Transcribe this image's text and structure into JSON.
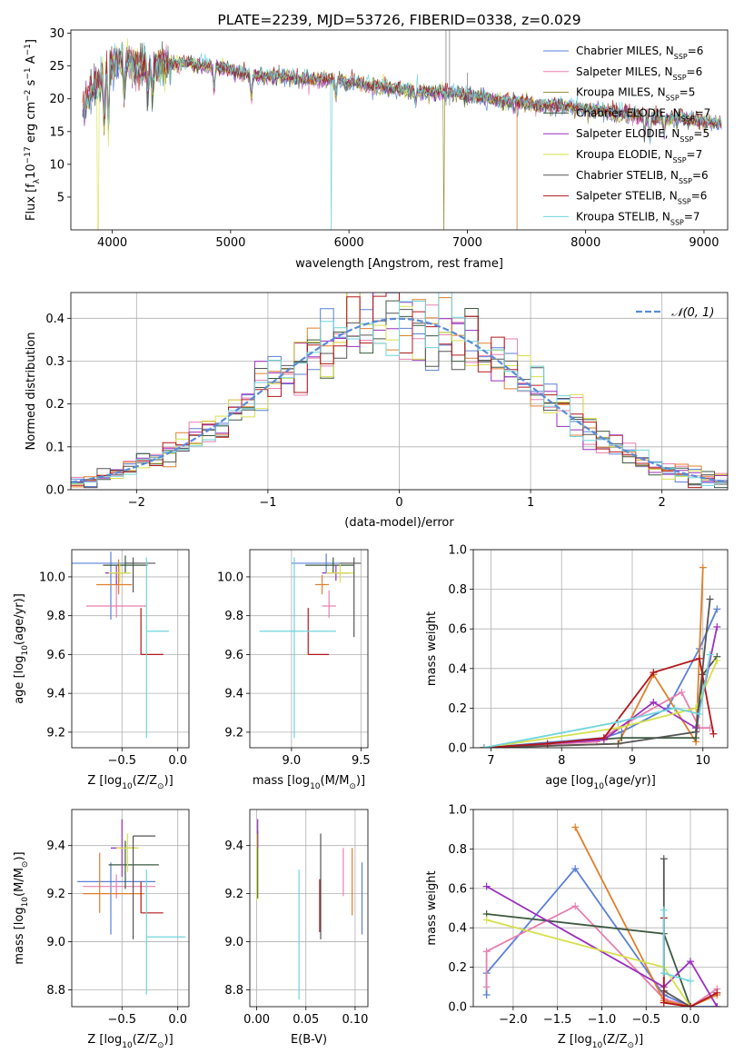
{
  "chart_data": [
    {
      "type": "line",
      "id": "spectrum",
      "title": "PLATE=2239, MJD=53726, FIBERID=0338, z=0.029",
      "xlabel": "wavelength [Angstrom, rest frame]",
      "ylabel_parts": [
        "Flux [f",
        "λ",
        "10",
        "−17",
        " erg cm",
        "−2",
        " s",
        "−1",
        " A",
        "−1",
        "]"
      ],
      "xlim": [
        3650,
        9200
      ],
      "ylim": [
        0,
        30.5
      ],
      "xticks": [
        4000,
        5000,
        6000,
        7000,
        8000,
        9000
      ],
      "yticks": [
        5,
        10,
        15,
        20,
        25,
        30
      ],
      "grid": false,
      "legend_position": "upper-right",
      "x_range": [
        3750,
        9150
      ],
      "series": [
        {
          "label_main": "Chabrier MILES, N",
          "label_sub": "SSP",
          "label_tail": "=6",
          "color": "#5a7fd8",
          "mask_x": null
        },
        {
          "label_main": "Salpeter MILES, N",
          "label_sub": "SSP",
          "label_tail": "=6",
          "color": "#e87fb0",
          "mask_x": null
        },
        {
          "label_main": "Kroupa MILES, N",
          "label_sub": "SSP",
          "label_tail": "=5",
          "color": "#8c8a2a",
          "mask_x": 6800
        },
        {
          "label_main": "Chabrier ELODIE, N",
          "label_sub": "SSP",
          "label_tail": "=7",
          "color": "#3c5a40",
          "mask_x": null
        },
        {
          "label_main": "Salpeter ELODIE, N",
          "label_sub": "SSP",
          "label_tail": "=5",
          "color": "#9a2fbf",
          "mask_x": null
        },
        {
          "label_main": "Kroupa ELODIE, N",
          "label_sub": "SSP",
          "label_tail": "=7",
          "color": "#d6e04a",
          "mask_x": null
        },
        {
          "label_main": "Chabrier STELIB, N",
          "label_sub": "SSP",
          "label_tail": "=6",
          "color": "#555555",
          "mask_x": null
        },
        {
          "label_main": "Salpeter STELIB, N",
          "label_sub": "SSP",
          "label_tail": "=6",
          "color": "#b3171b",
          "mask_x": null
        },
        {
          "label_main": "Kroupa STELIB, N",
          "label_sub": "SSP",
          "label_tail": "=7",
          "color": "#6fd4dc",
          "mask_x": 5850
        }
      ],
      "continuum": [
        [
          3750,
          18
        ],
        [
          3850,
          22
        ],
        [
          3950,
          24
        ],
        [
          4050,
          26
        ],
        [
          4200,
          25
        ],
        [
          4400,
          25
        ],
        [
          4600,
          25.5
        ],
        [
          4800,
          25
        ],
        [
          5000,
          24.5
        ],
        [
          5200,
          23.5
        ],
        [
          5400,
          23.5
        ],
        [
          5600,
          23
        ],
        [
          5800,
          23
        ],
        [
          6000,
          22.5
        ],
        [
          6200,
          22
        ],
        [
          6400,
          21.5
        ],
        [
          6600,
          21
        ],
        [
          6800,
          21
        ],
        [
          7000,
          20.5
        ],
        [
          7200,
          20
        ],
        [
          7400,
          19.5
        ],
        [
          7600,
          19
        ],
        [
          7800,
          19
        ],
        [
          8000,
          18.5
        ],
        [
          8200,
          18
        ],
        [
          8400,
          17.5
        ],
        [
          8600,
          17
        ],
        [
          8800,
          17
        ],
        [
          9000,
          16.5
        ],
        [
          9150,
          16
        ]
      ]
    },
    {
      "type": "histogram",
      "id": "residuals",
      "xlabel": "(data-model)/error",
      "ylabel": "Normed distribution",
      "xlim": [
        -2.5,
        2.5
      ],
      "ylim": [
        0,
        0.46
      ],
      "xticks": [
        -2,
        -1,
        0,
        1,
        2
      ],
      "yticks": [
        0.0,
        0.1,
        0.2,
        0.3,
        0.4
      ],
      "grid": true,
      "legend_position": "upper-right",
      "legend_label": "𝒩(0, 1)",
      "normal_curve_color": "#5a8bd6",
      "bin_width": 0.1,
      "bin_start": -2.5,
      "series_colors": [
        "#5a7fd8",
        "#e87fb0",
        "#e07f2a",
        "#3c5a40",
        "#9a2fbf",
        "#d6e04a",
        "#555555",
        "#b3171b",
        "#6fd4dc"
      ]
    },
    {
      "type": "scatter",
      "id": "age-vs-Z",
      "xlabel": "Z [log10(Z/Z⊙)]",
      "ylabel": "age  [log10(age/yr)]",
      "xlim": [
        -0.95,
        0.1
      ],
      "ylim": [
        9.12,
        10.14
      ],
      "xticks": [
        -0.5,
        0.0
      ],
      "yticks": [
        9.2,
        9.4,
        9.6,
        9.8,
        10.0
      ],
      "grid": true,
      "points": [
        {
          "x": -0.6,
          "xerr": [
            0.35,
            0.25
          ],
          "y": 10.07,
          "yerr": [
            0.29,
            0.06
          ],
          "color": "#5a7fd8"
        },
        {
          "x": -0.55,
          "xerr": [
            0.27,
            0.27
          ],
          "y": 9.85,
          "yerr": [
            0.06,
            0.13
          ],
          "color": "#e87fb0"
        },
        {
          "x": -0.53,
          "xerr": [
            0.2,
            0.12
          ],
          "y": 9.96,
          "yerr": [
            0.05,
            0.13
          ],
          "color": "#e07f2a"
        },
        {
          "x": -0.47,
          "xerr": [
            0.2,
            0.2
          ],
          "y": 10.06,
          "yerr": [
            0.04,
            0.05
          ],
          "color": "#3c5a40"
        },
        {
          "x": -0.55,
          "xerr": [
            0.1,
            0.12
          ],
          "y": 10.02,
          "yerr": [
            0.06,
            0.04
          ],
          "color": "#9a2fbf"
        },
        {
          "x": -0.52,
          "xerr": [
            0.1,
            0.1
          ],
          "y": 10.02,
          "yerr": [
            0.05,
            0.05
          ],
          "color": "#d6e04a"
        },
        {
          "x": -0.4,
          "xerr": [
            0.07,
            0.2
          ],
          "y": 10.07,
          "yerr": [
            0.15,
            0.03
          ],
          "color": "#555555"
        },
        {
          "x": -0.33,
          "xerr": [
            0.0,
            0.2
          ],
          "y": 9.6,
          "yerr": [
            0.0,
            0.24
          ],
          "color": "#b3171b"
        },
        {
          "x": -0.28,
          "xerr": [
            0.0,
            0.2
          ],
          "y": 9.72,
          "yerr": [
            0.55,
            0.38
          ],
          "color": "#6fd4dc"
        }
      ]
    },
    {
      "type": "scatter",
      "id": "age-vs-mass",
      "xlabel": "mass [log10(M/M⊙)]",
      "ylabel": "",
      "xlim": [
        8.7,
        9.55
      ],
      "ylim": [
        9.12,
        10.14
      ],
      "xticks": [
        9.0,
        9.5
      ],
      "yticks": [
        9.2,
        9.4,
        9.6,
        9.8,
        10.0
      ],
      "grid": true,
      "points": [
        {
          "x": 9.25,
          "xerr": [
            0.25,
            0.12
          ],
          "y": 10.07,
          "yerr": [
            0.05,
            0.05
          ],
          "color": "#5a7fd8"
        },
        {
          "x": 9.27,
          "xerr": [
            0.05,
            0.05
          ],
          "y": 9.85,
          "yerr": [
            0.06,
            0.08
          ],
          "color": "#e87fb0"
        },
        {
          "x": 9.22,
          "xerr": [
            0.05,
            0.05
          ],
          "y": 9.96,
          "yerr": [
            0.05,
            0.05
          ],
          "color": "#e07f2a"
        },
        {
          "x": 9.3,
          "xerr": [
            0.2,
            0.15
          ],
          "y": 10.06,
          "yerr": [
            0.04,
            0.04
          ],
          "color": "#3c5a40"
        },
        {
          "x": 9.32,
          "xerr": [
            0.1,
            0.1
          ],
          "y": 10.02,
          "yerr": [
            0.04,
            0.04
          ],
          "color": "#9a2fbf"
        },
        {
          "x": 9.35,
          "xerr": [
            0.1,
            0.1
          ],
          "y": 10.02,
          "yerr": [
            0.05,
            0.05
          ],
          "color": "#d6e04a"
        },
        {
          "x": 9.45,
          "xerr": [
            0.1,
            0.05
          ],
          "y": 10.07,
          "yerr": [
            0.38,
            0.03
          ],
          "color": "#555555"
        },
        {
          "x": 9.12,
          "xerr": [
            0.0,
            0.15
          ],
          "y": 9.6,
          "yerr": [
            0.0,
            0.24
          ],
          "color": "#b3171b"
        },
        {
          "x": 9.02,
          "xerr": [
            0.25,
            0.3
          ],
          "y": 9.72,
          "yerr": [
            0.55,
            0.38
          ],
          "color": "#6fd4dc"
        }
      ]
    },
    {
      "type": "line",
      "id": "mass-weight-vs-age",
      "xlabel": "age  [log10(age/yr)]",
      "ylabel": "mass weight",
      "xlim": [
        6.75,
        10.35
      ],
      "ylim": [
        0.0,
        1.0
      ],
      "xticks": [
        7,
        8,
        9,
        10
      ],
      "yticks": [
        0.0,
        0.2,
        0.4,
        0.6,
        0.8,
        1.0
      ],
      "grid": true,
      "series": [
        {
          "color": "#5a7fd8",
          "x": [
            6.9,
            8.6,
            8.85,
            9.5,
            9.95,
            10.2
          ],
          "y": [
            0.0,
            0.05,
            0.08,
            0.2,
            0.5,
            0.7
          ]
        },
        {
          "color": "#e87fb0",
          "x": [
            6.9,
            8.5,
            8.8,
            9.7,
            9.95,
            10.1
          ],
          "y": [
            0.0,
            0.03,
            0.1,
            0.28,
            0.1,
            0.1
          ]
        },
        {
          "color": "#e07f2a",
          "x": [
            6.9,
            8.8,
            9.3,
            9.9,
            10.0
          ],
          "y": [
            0.0,
            0.02,
            0.37,
            0.03,
            0.91
          ]
        },
        {
          "color": "#3c5a40",
          "x": [
            6.9,
            8.85,
            9.9,
            10.0,
            10.2
          ],
          "y": [
            0.0,
            0.05,
            0.05,
            0.37,
            0.46
          ]
        },
        {
          "color": "#9a2fbf",
          "x": [
            6.9,
            8.6,
            9.3,
            9.9,
            10.2
          ],
          "y": [
            0.0,
            0.04,
            0.23,
            0.1,
            0.61
          ]
        },
        {
          "color": "#d6e04a",
          "x": [
            6.9,
            8.8,
            9.9,
            10.2
          ],
          "y": [
            0.0,
            0.1,
            0.2,
            0.44
          ]
        },
        {
          "color": "#555555",
          "x": [
            6.9,
            8.8,
            9.9,
            10.1
          ],
          "y": [
            0.0,
            0.02,
            0.08,
            0.75
          ]
        },
        {
          "color": "#b3171b",
          "x": [
            6.9,
            7.8,
            8.6,
            9.3,
            9.95,
            10.15
          ],
          "y": [
            0.0,
            0.02,
            0.05,
            0.38,
            0.45,
            0.07
          ]
        },
        {
          "color": "#6fd4dc",
          "x": [
            6.9,
            8.8,
            9.6,
            9.95,
            10.1
          ],
          "y": [
            0.0,
            0.13,
            0.2,
            0.17,
            0.47
          ]
        }
      ]
    },
    {
      "type": "scatter",
      "id": "mass-vs-Z",
      "xlabel": "Z [log10(Z/Z⊙)]",
      "ylabel": "mass [log10(M/M⊙)]",
      "xlim": [
        -0.95,
        0.1
      ],
      "ylim": [
        8.73,
        9.55
      ],
      "xticks": [
        -0.5,
        0.0
      ],
      "yticks": [
        8.8,
        9.0,
        9.2,
        9.4
      ],
      "grid": true,
      "points": [
        {
          "x": -0.6,
          "xerr": [
            0.3,
            0.4
          ],
          "y": 9.25,
          "yerr": [
            0.22,
            0.08
          ],
          "color": "#5a7fd8"
        },
        {
          "x": -0.55,
          "xerr": [
            0.3,
            0.35
          ],
          "y": 9.23,
          "yerr": [
            0.05,
            0.05
          ],
          "color": "#e87fb0"
        },
        {
          "x": -0.7,
          "xerr": [
            0.15,
            0.4
          ],
          "y": 9.2,
          "yerr": [
            0.08,
            0.17
          ],
          "color": "#e07f2a"
        },
        {
          "x": -0.47,
          "xerr": [
            0.15,
            0.3
          ],
          "y": 9.32,
          "yerr": [
            0.1,
            0.1
          ],
          "color": "#3c5a40"
        },
        {
          "x": -0.5,
          "xerr": [
            0.1,
            0.12
          ],
          "y": 9.39,
          "yerr": [
            0.12,
            0.12
          ],
          "color": "#9a2fbf"
        },
        {
          "x": -0.45,
          "xerr": [
            0.1,
            0.1
          ],
          "y": 9.39,
          "yerr": [
            0.1,
            0.06
          ],
          "color": "#d6e04a"
        },
        {
          "x": -0.4,
          "xerr": [
            0.0,
            0.2
          ],
          "y": 9.44,
          "yerr": [
            0.43,
            0.0
          ],
          "color": "#555555"
        },
        {
          "x": -0.33,
          "xerr": [
            0.0,
            0.2
          ],
          "y": 9.12,
          "yerr": [
            0.0,
            0.13
          ],
          "color": "#b3171b"
        },
        {
          "x": -0.28,
          "xerr": [
            0.0,
            0.35
          ],
          "y": 9.02,
          "yerr": [
            0.24,
            0.28
          ],
          "color": "#6fd4dc"
        }
      ]
    },
    {
      "type": "scatter",
      "id": "mass-vs-EBV",
      "xlabel": "E(B-V)",
      "ylabel": "",
      "xlim": [
        -0.007,
        0.113
      ],
      "ylim": [
        8.73,
        9.55
      ],
      "xticks": [
        0.0,
        0.05,
        0.1
      ],
      "yticks": [
        8.8,
        9.0,
        9.2,
        9.4
      ],
      "grid": true,
      "points": [
        {
          "x": 0.107,
          "y": 9.18,
          "yerr": [
            0.15,
            0.15
          ],
          "color": "#5a7fd8"
        },
        {
          "x": 0.088,
          "y": 9.29,
          "yerr": [
            0.1,
            0.1
          ],
          "color": "#e87fb0"
        },
        {
          "x": 0.097,
          "y": 9.21,
          "yerr": [
            0.1,
            0.18
          ],
          "color": "#e07f2a"
        },
        {
          "x": 0.001,
          "y": 9.28,
          "yerr": [
            0.1,
            0.18
          ],
          "color": "#3c5a40"
        },
        {
          "x": 0.001,
          "y": 9.45,
          "yerr": [
            0.06,
            0.06
          ],
          "color": "#9a2fbf"
        },
        {
          "x": 0.0,
          "y": 9.31,
          "yerr": [
            0.14,
            0.14
          ],
          "color": "#d6e04a"
        },
        {
          "x": 0.065,
          "y": 9.23,
          "yerr": [
            0.22,
            0.22
          ],
          "color": "#555555"
        },
        {
          "x": 0.064,
          "y": 9.15,
          "yerr": [
            0.11,
            0.11
          ],
          "color": "#b3171b"
        },
        {
          "x": 0.043,
          "y": 9.03,
          "yerr": [
            0.27,
            0.27
          ],
          "color": "#6fd4dc"
        }
      ]
    },
    {
      "type": "line",
      "id": "mass-weight-vs-Z",
      "xlabel": "Z [log10(Z/Z⊙)]",
      "ylabel": "mass weight",
      "xlim": [
        -2.45,
        0.42
      ],
      "ylim": [
        0.0,
        1.0
      ],
      "xticks": [
        -2.0,
        -1.5,
        -1.0,
        -0.5,
        0.0
      ],
      "yticks": [
        0.0,
        0.2,
        0.4,
        0.6,
        0.8,
        1.0
      ],
      "grid": true,
      "series": [
        {
          "color": "#5a7fd8",
          "x": [
            -2.3,
            -2.3,
            -1.3,
            -0.3,
            0.0,
            0.3
          ],
          "y": [
            0.06,
            0.17,
            0.7,
            0.06,
            0.0,
            0.0
          ]
        },
        {
          "color": "#e87fb0",
          "x": [
            -2.3,
            -2.3,
            -1.3,
            -0.3,
            0.0,
            0.3
          ],
          "y": [
            0.1,
            0.28,
            0.51,
            0.04,
            0.0,
            0.09
          ]
        },
        {
          "color": "#e07f2a",
          "x": [
            -1.3,
            -0.3,
            0.0,
            0.3
          ],
          "y": [
            0.91,
            0.03,
            0.0,
            0.06
          ]
        },
        {
          "color": "#3c5a40",
          "x": [
            -2.3,
            -0.3,
            0.0
          ],
          "y": [
            0.47,
            0.37,
            0.0
          ]
        },
        {
          "color": "#9a2fbf",
          "x": [
            -2.3,
            -0.3,
            0.0,
            0.3
          ],
          "y": [
            0.61,
            0.1,
            0.23,
            0.0
          ]
        },
        {
          "color": "#d6e04a",
          "x": [
            -2.3,
            -0.3,
            0.0
          ],
          "y": [
            0.44,
            0.2,
            0.0
          ]
        },
        {
          "color": "#555555",
          "x": [
            -0.3,
            -0.3,
            0.0
          ],
          "y": [
            0.75,
            0.08,
            0.0
          ]
        },
        {
          "color": "#b3171b",
          "x": [
            -0.3,
            -0.3,
            0.0,
            0.3
          ],
          "y": [
            0.45,
            0.02,
            0.0,
            0.07
          ]
        },
        {
          "color": "#6fd4dc",
          "x": [
            -0.3,
            -0.3,
            0.0
          ],
          "y": [
            0.49,
            0.17,
            0.13
          ]
        }
      ]
    }
  ]
}
